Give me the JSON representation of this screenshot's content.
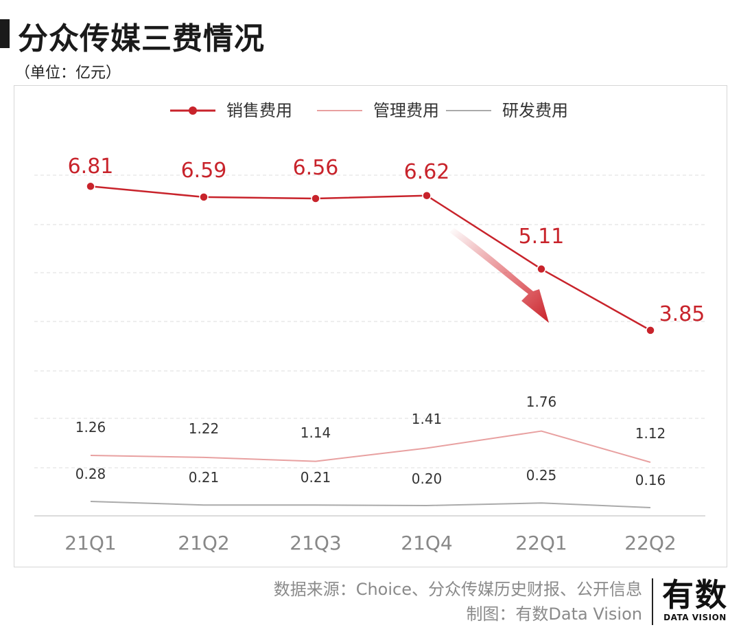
{
  "header": {
    "title": "分众传媒三费情况",
    "unit": "（单位：亿元）"
  },
  "footer": {
    "source": "数据来源：Choice、分众传媒历史财报、公开信息",
    "credit": "制图：有数Data Vision"
  },
  "logo": {
    "main": "有数",
    "sub": "DATA VISION"
  },
  "colors": {
    "sales": "#c8232b",
    "admin": "#e8a0a0",
    "rd": "#aaaaaa",
    "grid": "#dddddd",
    "axis": "#888888"
  },
  "chart_data": {
    "type": "line",
    "title": "分众传媒三费情况",
    "ylabel": "亿元",
    "categories": [
      "21Q1",
      "21Q2",
      "21Q3",
      "21Q4",
      "22Q1",
      "22Q2"
    ],
    "series": [
      {
        "name": "销售费用",
        "values": [
          6.81,
          6.59,
          6.56,
          6.62,
          5.11,
          3.85
        ],
        "markers": true
      },
      {
        "name": "管理费用",
        "values": [
          1.26,
          1.22,
          1.14,
          1.41,
          1.76,
          1.12
        ],
        "markers": false
      },
      {
        "name": "研发费用",
        "values": [
          0.28,
          0.21,
          0.21,
          0.2,
          0.25,
          0.16
        ],
        "markers": false
      }
    ],
    "legend": "top",
    "grid": true,
    "annotation": "downward arrow highlighting decline in 销售费用"
  }
}
